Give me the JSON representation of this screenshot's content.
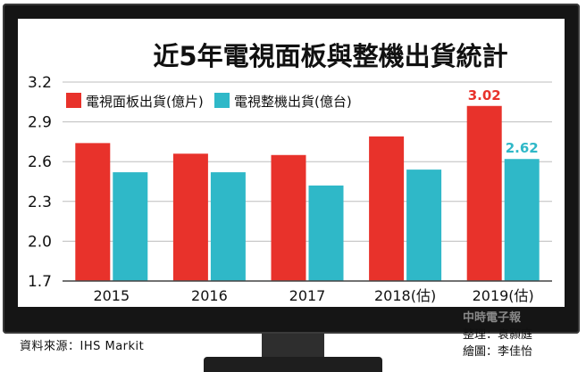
{
  "chart_data": {
    "type": "bar",
    "title": "近5年電視面板與整機出貨統計",
    "categories": [
      "2015",
      "2016",
      "2017",
      "2018(估)",
      "2019(估)"
    ],
    "series": [
      {
        "name": "電視面板出貨(億片)",
        "values": [
          2.74,
          2.66,
          2.65,
          2.79,
          3.02
        ],
        "color": "#e8322b"
      },
      {
        "name": "電視整機出貨(億台)",
        "values": [
          2.52,
          2.52,
          2.42,
          2.54,
          2.62
        ],
        "color": "#2fb8c8"
      }
    ],
    "data_labels": {
      "series0_last": "3.02",
      "series1_last": "2.62"
    },
    "yticks": [
      "1.7",
      "2.0",
      "2.3",
      "2.6",
      "2.9",
      "3.2"
    ],
    "ylim": [
      1.7,
      3.2
    ],
    "grid": true,
    "legend": "top-left"
  },
  "source": "資料來源：IHS Markit",
  "credits": {
    "watermark": "中時電子報",
    "editor": "整理：袁顥庭",
    "artist": "繪圖：李佳怡"
  }
}
